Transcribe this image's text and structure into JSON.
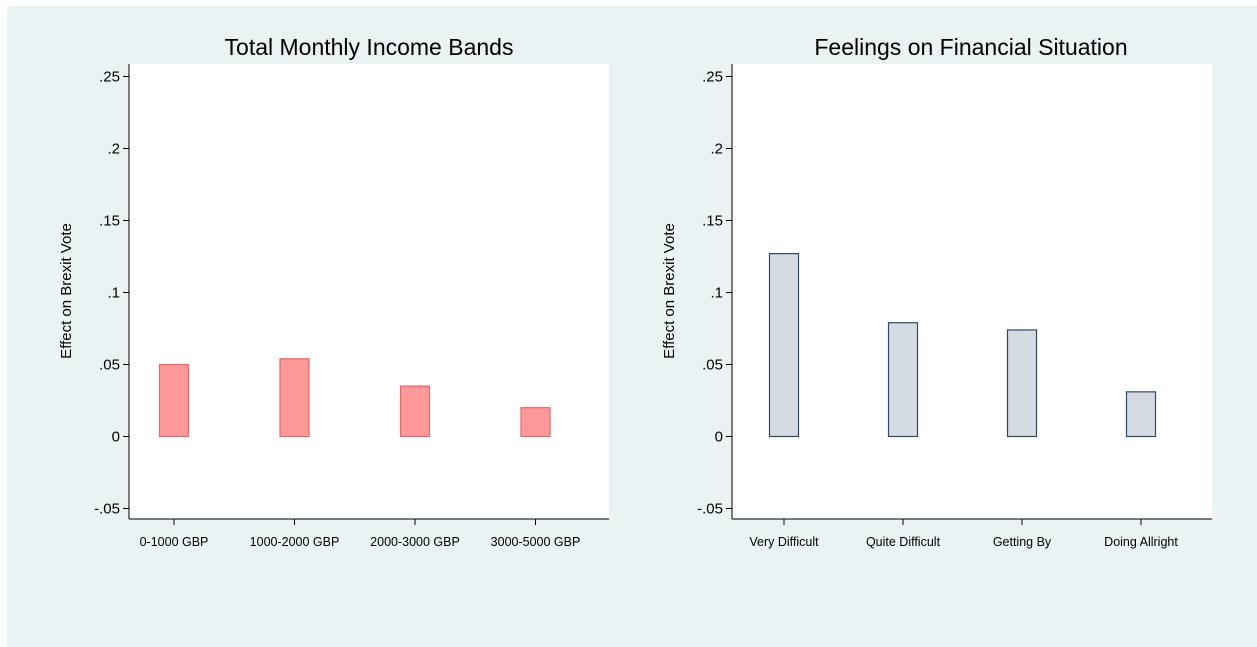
{
  "chart_data": [
    {
      "type": "bar",
      "title": "Total Monthly Income Bands",
      "ylabel": "Effect on Brexit Vote",
      "xlabel": "",
      "categories": [
        "0-1000 GBP",
        "1000-2000 GBP",
        "2000-3000 GBP",
        "3000-5000 GBP"
      ],
      "values": [
        0.05,
        0.054,
        0.035,
        0.02
      ],
      "ylim": [
        -0.05,
        0.25
      ],
      "yticks": [
        -0.05,
        0,
        0.05,
        0.1,
        0.15,
        0.2,
        0.25
      ],
      "ytick_labels": [
        "-.05",
        "0",
        ".05",
        ".1",
        ".15",
        ".2",
        ".25"
      ],
      "bar_fill": "#ff9999",
      "bar_stroke": "#e0686a",
      "grid": false
    },
    {
      "type": "bar",
      "title": "Feelings on Financial Situation",
      "ylabel": "Effect on Brexit Vote",
      "xlabel": "",
      "categories": [
        "Very Difficult",
        "Quite Difficult",
        "Getting By",
        "Doing Allright"
      ],
      "values": [
        0.127,
        0.079,
        0.074,
        0.031
      ],
      "ylim": [
        -0.05,
        0.25
      ],
      "yticks": [
        -0.05,
        0,
        0.05,
        0.1,
        0.15,
        0.2,
        0.25
      ],
      "ytick_labels": [
        "-.05",
        "0",
        ".05",
        ".1",
        ".15",
        ".2",
        ".25"
      ],
      "bar_fill": "#d4dbe3",
      "bar_stroke": "#2d4a6a",
      "grid": false
    }
  ],
  "colors": {
    "outer_background": "#eaf2f3",
    "plot_background": "#ffffff",
    "axis": "#000000"
  }
}
